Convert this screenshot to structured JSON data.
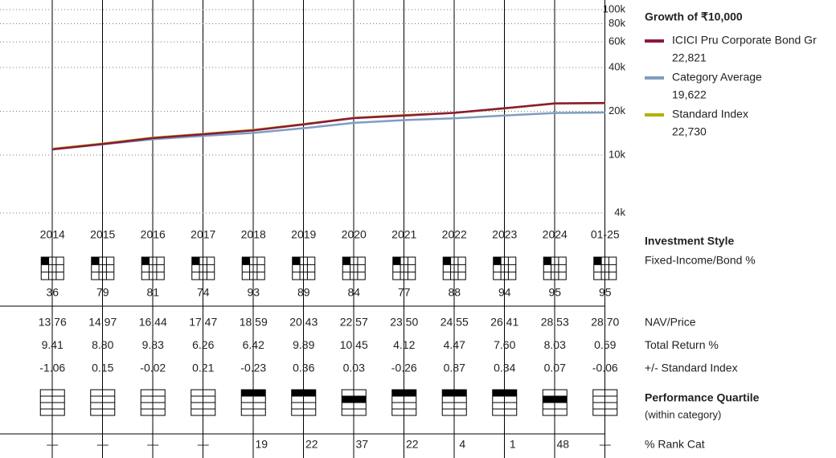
{
  "chart_data": {
    "type": "line",
    "title": "Growth of ₹10,000",
    "log_scale": true,
    "grid": true,
    "categories": [
      "2014",
      "2015",
      "2016",
      "2017",
      "2018",
      "2019",
      "2020",
      "2021",
      "2022",
      "2023",
      "2024",
      "01-25"
    ],
    "ylim": [
      4000,
      100000
    ],
    "yticks": [
      {
        "value": 100000,
        "label": "100k"
      },
      {
        "value": 80000,
        "label": "80k"
      },
      {
        "value": 60000,
        "label": "60k"
      },
      {
        "value": 40000,
        "label": "40k"
      },
      {
        "value": 20000,
        "label": "20k"
      },
      {
        "value": 10000,
        "label": "10k"
      },
      {
        "value": 4000,
        "label": "4k"
      }
    ],
    "series": [
      {
        "name": "ICICI Pru Corporate Bond Gr",
        "color": "#8b1a3a",
        "values": [
          10941,
          11904,
          13073,
          13891,
          14783,
          16245,
          17943,
          18683,
          19518,
          21001,
          22688,
          22821
        ],
        "value_labels": [
          null,
          null,
          null,
          null,
          null,
          null,
          null,
          null,
          null,
          null,
          null,
          "22,821"
        ]
      },
      {
        "name": "Category Average",
        "color": "#7f9dc0",
        "values": [
          10950,
          11850,
          12850,
          13550,
          14200,
          15300,
          16650,
          17400,
          17900,
          18700,
          19480,
          19622
        ],
        "value_labels": [
          null,
          null,
          null,
          null,
          null,
          null,
          null,
          null,
          null,
          null,
          null,
          "19,622"
        ]
      },
      {
        "name": "Standard Index",
        "color": "#b5b000",
        "values": [
          11047,
          12003,
          13185,
          13982,
          14912,
          16333,
          18035,
          18825,
          19503,
          20919,
          22584,
          22730
        ],
        "value_labels": [
          null,
          null,
          null,
          null,
          null,
          null,
          null,
          null,
          null,
          null,
          null,
          "22,730"
        ]
      }
    ]
  },
  "table": {
    "style": {
      "title": "Investment Style",
      "subtitle": "Fixed-Income/Bond %",
      "values": [
        "36",
        "79",
        "81",
        "74",
        "93",
        "89",
        "84",
        "77",
        "88",
        "94",
        "95",
        "95"
      ]
    },
    "rows": [
      {
        "label": "NAV/Price",
        "cells": [
          "13.76",
          "14.97",
          "16.44",
          "17.47",
          "18.59",
          "20.43",
          "22.57",
          "23.50",
          "24.55",
          "26.41",
          "28.53",
          "28.70"
        ]
      },
      {
        "label": "Total Return %",
        "cells": [
          "9.41",
          "8.80",
          "9.83",
          "6.26",
          "6.42",
          "9.89",
          "10.45",
          "4.12",
          "4.47",
          "7.60",
          "8.03",
          "0.59"
        ]
      },
      {
        "label": "+/- Standard Index",
        "cells": [
          "-1.06",
          "0.15",
          "-0.02",
          "0.21",
          "-0.23",
          "0.36",
          "0.03",
          "-0.26",
          "0.87",
          "0.34",
          "0.07",
          "-0.06"
        ]
      }
    ],
    "quartile": {
      "title": "Performance Quartile",
      "subtitle": "(within category)",
      "values": [
        null,
        null,
        null,
        null,
        1,
        1,
        2,
        1,
        1,
        1,
        2,
        null
      ]
    },
    "rank": {
      "label": "% Rank Cat",
      "cells": [
        "—",
        "—",
        "—",
        "—",
        "19",
        "22",
        "37",
        "22",
        "4",
        "1",
        "48",
        "—"
      ]
    }
  }
}
